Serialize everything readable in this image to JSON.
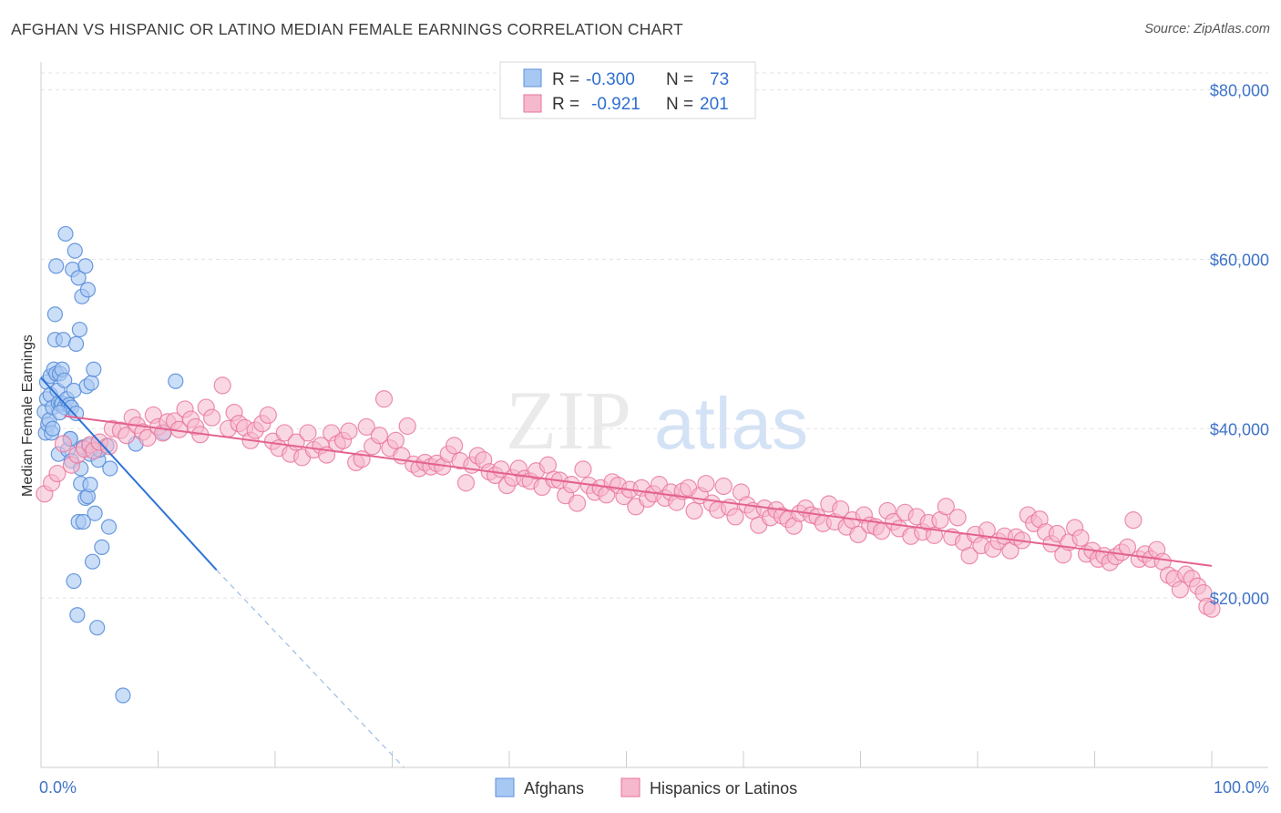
{
  "title": "AFGHAN VS HISPANIC OR LATINO MEDIAN FEMALE EARNINGS CORRELATION CHART",
  "source": "Source: ZipAtlas.com",
  "watermark": {
    "zip": "ZIP",
    "atlas": "atlas"
  },
  "colors": {
    "blue_fill": "#a8c8f4",
    "blue_stroke": "#5b8fd9",
    "blue_line": "#2e74d4",
    "pink_fill": "#f6b8cc",
    "pink_stroke": "#e8739a",
    "pink_line": "#e4628e",
    "grid": "#e3e3e3",
    "axis": "#cccccc",
    "tick_text": "#3f74c8"
  },
  "stats": [
    {
      "r_label": "R =",
      "r_value": "-0.300",
      "n_label": "N =",
      "n_value": "73"
    },
    {
      "r_label": "R =",
      "r_value": "-0.921",
      "n_label": "N =",
      "n_value": "201"
    }
  ],
  "chart_data": {
    "type": "scatter",
    "title": "AFGHAN VS HISPANIC OR LATINO MEDIAN FEMALE EARNINGS CORRELATION CHART",
    "xlabel": "",
    "ylabel": "Median Female Earnings",
    "x_range": [
      0,
      100
    ],
    "y_range": [
      0,
      82000
    ],
    "x_tick_labels": [
      "0.0%",
      "100.0%"
    ],
    "y_ticks": [
      20000,
      40000,
      60000,
      80000
    ],
    "y_tick_labels": [
      "$20,000",
      "$40,000",
      "$60,000",
      "$80,000"
    ],
    "grid": true,
    "legend_position": "bottom-center",
    "series": [
      {
        "name": "Afghans",
        "color": "#a8c8f4",
        "trend": {
          "x": [
            0,
            15
          ],
          "y": [
            46000,
            23300
          ],
          "dashed_to": [
            31,
            0
          ]
        },
        "points": [
          [
            0.3,
            42000
          ],
          [
            0.4,
            39500
          ],
          [
            0.5,
            45500
          ],
          [
            0.5,
            43500
          ],
          [
            0.6,
            40500
          ],
          [
            0.7,
            41000
          ],
          [
            0.8,
            46200
          ],
          [
            0.8,
            44000
          ],
          [
            0.9,
            39500
          ],
          [
            1.0,
            42500
          ],
          [
            1.0,
            40000
          ],
          [
            1.1,
            47000
          ],
          [
            1.2,
            53500
          ],
          [
            1.2,
            50500
          ],
          [
            1.3,
            59200
          ],
          [
            1.3,
            46500
          ],
          [
            1.4,
            44500
          ],
          [
            1.5,
            43000
          ],
          [
            1.5,
            37000
          ],
          [
            1.6,
            46500
          ],
          [
            1.7,
            42800
          ],
          [
            1.8,
            47000
          ],
          [
            1.8,
            43000
          ],
          [
            1.9,
            50500
          ],
          [
            2.0,
            45700
          ],
          [
            2.0,
            42500
          ],
          [
            2.1,
            63000
          ],
          [
            2.2,
            43500
          ],
          [
            2.3,
            37500
          ],
          [
            2.4,
            42800
          ],
          [
            2.5,
            38800
          ],
          [
            2.6,
            42500
          ],
          [
            2.6,
            36200
          ],
          [
            2.7,
            58800
          ],
          [
            2.8,
            44500
          ],
          [
            2.8,
            22000
          ],
          [
            2.9,
            61000
          ],
          [
            3.0,
            50000
          ],
          [
            3.0,
            41800
          ],
          [
            3.1,
            18000
          ],
          [
            3.2,
            29000
          ],
          [
            3.2,
            57800
          ],
          [
            3.3,
            51700
          ],
          [
            3.4,
            33500
          ],
          [
            3.4,
            35300
          ],
          [
            3.5,
            55600
          ],
          [
            3.6,
            29000
          ],
          [
            3.6,
            37800
          ],
          [
            3.8,
            59200
          ],
          [
            3.8,
            31800
          ],
          [
            3.9,
            45000
          ],
          [
            4.0,
            56400
          ],
          [
            4.0,
            32000
          ],
          [
            4.1,
            38000
          ],
          [
            4.2,
            33400
          ],
          [
            4.2,
            37000
          ],
          [
            4.3,
            45400
          ],
          [
            4.4,
            24300
          ],
          [
            4.5,
            47000
          ],
          [
            4.6,
            30000
          ],
          [
            4.8,
            16500
          ],
          [
            4.9,
            36300
          ],
          [
            5.0,
            37500
          ],
          [
            5.2,
            26000
          ],
          [
            5.6,
            38000
          ],
          [
            5.8,
            28400
          ],
          [
            5.9,
            35300
          ],
          [
            7.0,
            8500
          ],
          [
            8.1,
            38200
          ],
          [
            10.5,
            39500
          ],
          [
            11.5,
            45600
          ],
          [
            1.6,
            41900
          ],
          [
            2.5,
            38800
          ]
        ]
      },
      {
        "name": "Hispanics or Latinos",
        "color": "#f6b8cc",
        "trend": {
          "x": [
            2,
            100
          ],
          "y": [
            41500,
            23800
          ]
        },
        "points": [
          [
            0.3,
            32300
          ],
          [
            0.9,
            33600
          ],
          [
            1.4,
            34700
          ],
          [
            1.9,
            38200
          ],
          [
            2.6,
            35700
          ],
          [
            3.1,
            36900
          ],
          [
            3.7,
            37600
          ],
          [
            4.2,
            38100
          ],
          [
            4.5,
            37400
          ],
          [
            5.0,
            38400
          ],
          [
            5.8,
            37900
          ],
          [
            6.1,
            40000
          ],
          [
            6.8,
            39800
          ],
          [
            7.3,
            39200
          ],
          [
            7.8,
            41300
          ],
          [
            8.2,
            40400
          ],
          [
            8.7,
            39600
          ],
          [
            9.1,
            38900
          ],
          [
            9.6,
            41600
          ],
          [
            10.0,
            40200
          ],
          [
            10.4,
            39500
          ],
          [
            10.8,
            40800
          ],
          [
            11.4,
            40900
          ],
          [
            11.8,
            39900
          ],
          [
            12.3,
            42300
          ],
          [
            12.8,
            41100
          ],
          [
            13.2,
            40200
          ],
          [
            13.6,
            39300
          ],
          [
            14.1,
            42500
          ],
          [
            14.6,
            41300
          ],
          [
            15.5,
            45100
          ],
          [
            16.0,
            40000
          ],
          [
            16.5,
            41900
          ],
          [
            16.9,
            40600
          ],
          [
            17.4,
            40100
          ],
          [
            17.9,
            38600
          ],
          [
            18.3,
            39800
          ],
          [
            18.9,
            40600
          ],
          [
            19.4,
            41600
          ],
          [
            19.8,
            38500
          ],
          [
            20.3,
            37700
          ],
          [
            20.8,
            39500
          ],
          [
            21.3,
            37000
          ],
          [
            21.8,
            38400
          ],
          [
            22.3,
            36600
          ],
          [
            22.8,
            39500
          ],
          [
            23.3,
            37500
          ],
          [
            23.9,
            38000
          ],
          [
            24.4,
            36900
          ],
          [
            24.8,
            39500
          ],
          [
            25.3,
            38200
          ],
          [
            25.8,
            38600
          ],
          [
            26.3,
            39700
          ],
          [
            26.9,
            36000
          ],
          [
            27.4,
            36400
          ],
          [
            27.8,
            40200
          ],
          [
            28.3,
            37900
          ],
          [
            28.9,
            39200
          ],
          [
            29.3,
            43500
          ],
          [
            29.8,
            37700
          ],
          [
            30.3,
            38600
          ],
          [
            30.8,
            36800
          ],
          [
            31.3,
            40300
          ],
          [
            31.8,
            35800
          ],
          [
            32.3,
            35300
          ],
          [
            32.8,
            36000
          ],
          [
            33.3,
            35500
          ],
          [
            33.8,
            35900
          ],
          [
            34.3,
            35500
          ],
          [
            34.8,
            37000
          ],
          [
            35.3,
            38000
          ],
          [
            35.8,
            36200
          ],
          [
            36.3,
            33600
          ],
          [
            36.8,
            35700
          ],
          [
            37.3,
            36800
          ],
          [
            37.8,
            36300
          ],
          [
            38.3,
            34900
          ],
          [
            38.8,
            34500
          ],
          [
            39.3,
            35200
          ],
          [
            39.8,
            33300
          ],
          [
            40.3,
            34200
          ],
          [
            40.8,
            35300
          ],
          [
            41.3,
            34100
          ],
          [
            41.8,
            33800
          ],
          [
            42.3,
            35000
          ],
          [
            42.8,
            33100
          ],
          [
            43.3,
            35700
          ],
          [
            43.8,
            34000
          ],
          [
            44.3,
            33900
          ],
          [
            44.8,
            32100
          ],
          [
            45.3,
            33400
          ],
          [
            45.8,
            31200
          ],
          [
            46.3,
            35200
          ],
          [
            46.8,
            33300
          ],
          [
            47.3,
            32500
          ],
          [
            47.8,
            33000
          ],
          [
            48.3,
            32200
          ],
          [
            48.8,
            33700
          ],
          [
            49.3,
            33300
          ],
          [
            49.8,
            32000
          ],
          [
            50.3,
            32800
          ],
          [
            50.8,
            30800
          ],
          [
            51.3,
            33000
          ],
          [
            51.8,
            31700
          ],
          [
            52.3,
            32300
          ],
          [
            52.8,
            33400
          ],
          [
            53.3,
            31800
          ],
          [
            53.8,
            32500
          ],
          [
            54.3,
            31300
          ],
          [
            54.8,
            32600
          ],
          [
            55.3,
            33000
          ],
          [
            55.8,
            30300
          ],
          [
            56.3,
            32100
          ],
          [
            56.8,
            33500
          ],
          [
            57.3,
            31200
          ],
          [
            57.8,
            30400
          ],
          [
            58.3,
            33200
          ],
          [
            58.8,
            30700
          ],
          [
            59.3,
            29600
          ],
          [
            59.8,
            32500
          ],
          [
            60.3,
            31000
          ],
          [
            60.8,
            30300
          ],
          [
            61.3,
            28600
          ],
          [
            61.8,
            30600
          ],
          [
            62.3,
            29500
          ],
          [
            62.8,
            30400
          ],
          [
            63.3,
            29700
          ],
          [
            63.8,
            29300
          ],
          [
            64.3,
            28500
          ],
          [
            64.8,
            30000
          ],
          [
            65.3,
            30600
          ],
          [
            65.8,
            29800
          ],
          [
            66.3,
            29600
          ],
          [
            66.8,
            28800
          ],
          [
            67.3,
            31100
          ],
          [
            67.8,
            29000
          ],
          [
            68.3,
            30500
          ],
          [
            68.8,
            28400
          ],
          [
            69.3,
            29200
          ],
          [
            69.8,
            27500
          ],
          [
            70.3,
            29800
          ],
          [
            70.8,
            28600
          ],
          [
            71.3,
            28400
          ],
          [
            71.8,
            27900
          ],
          [
            72.3,
            30300
          ],
          [
            72.8,
            29000
          ],
          [
            73.3,
            28200
          ],
          [
            73.8,
            30100
          ],
          [
            74.3,
            27300
          ],
          [
            74.8,
            29600
          ],
          [
            75.3,
            27800
          ],
          [
            75.8,
            28900
          ],
          [
            76.3,
            27400
          ],
          [
            76.8,
            29200
          ],
          [
            77.3,
            30800
          ],
          [
            77.8,
            27200
          ],
          [
            78.3,
            29500
          ],
          [
            78.8,
            26600
          ],
          [
            79.3,
            25000
          ],
          [
            79.8,
            27500
          ],
          [
            80.3,
            26200
          ],
          [
            80.8,
            28000
          ],
          [
            81.3,
            25800
          ],
          [
            81.8,
            26700
          ],
          [
            82.3,
            27300
          ],
          [
            82.8,
            25600
          ],
          [
            83.3,
            27200
          ],
          [
            83.8,
            26800
          ],
          [
            84.3,
            29800
          ],
          [
            84.8,
            28800
          ],
          [
            85.3,
            29300
          ],
          [
            85.8,
            27800
          ],
          [
            86.3,
            26400
          ],
          [
            86.8,
            27600
          ],
          [
            87.3,
            25100
          ],
          [
            87.8,
            26600
          ],
          [
            88.3,
            28300
          ],
          [
            88.8,
            27100
          ],
          [
            89.3,
            25200
          ],
          [
            89.8,
            25600
          ],
          [
            90.3,
            24600
          ],
          [
            90.8,
            25000
          ],
          [
            91.3,
            24200
          ],
          [
            91.8,
            24900
          ],
          [
            92.3,
            25400
          ],
          [
            92.8,
            26000
          ],
          [
            93.3,
            29200
          ],
          [
            93.8,
            24600
          ],
          [
            94.3,
            25200
          ],
          [
            94.8,
            24600
          ],
          [
            95.3,
            25700
          ],
          [
            95.8,
            24300
          ],
          [
            96.3,
            22700
          ],
          [
            96.8,
            22300
          ],
          [
            97.3,
            21000
          ],
          [
            97.8,
            22800
          ],
          [
            98.3,
            22300
          ],
          [
            98.8,
            21400
          ],
          [
            99.3,
            20600
          ],
          [
            99.6,
            19000
          ],
          [
            100.0,
            18700
          ]
        ]
      }
    ]
  }
}
